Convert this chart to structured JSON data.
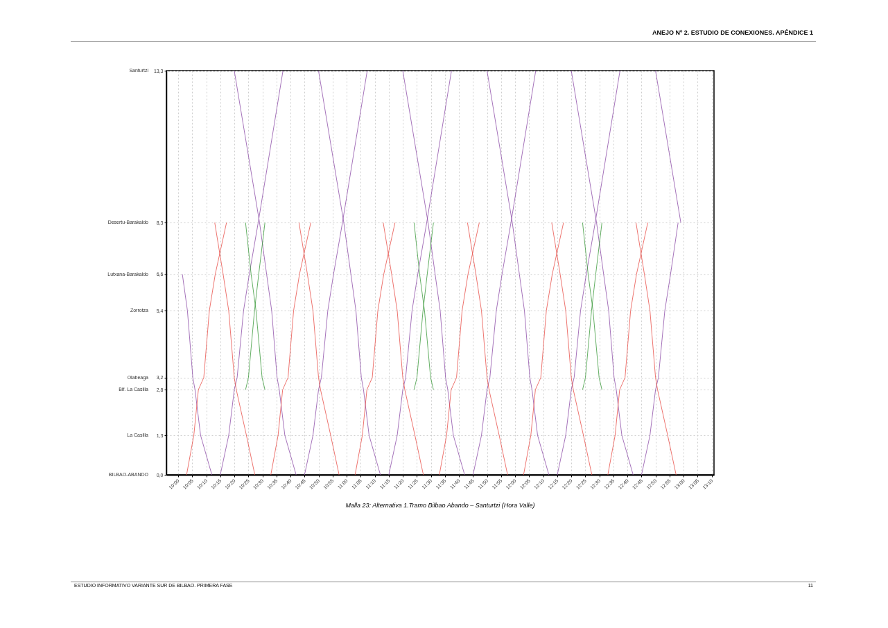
{
  "chart_data": {
    "type": "line",
    "title": "Malla 23: Alternativa 1.Tramo Bilbao Abando – Santurtzi (Hora Valle)",
    "xlim": [
      9.93,
      13.18
    ],
    "ylim": [
      0,
      13.3
    ],
    "xticks": [
      {
        "value": 10,
        "label": "10:00"
      },
      {
        "value": 10.0833,
        "label": "10:05"
      },
      {
        "value": 10.1667,
        "label": "10:10"
      },
      {
        "value": 10.25,
        "label": "10:15"
      },
      {
        "value": 10.3333,
        "label": "10:20"
      },
      {
        "value": 10.4167,
        "label": "10:25"
      },
      {
        "value": 10.5,
        "label": "10:30"
      },
      {
        "value": 10.5833,
        "label": "10:35"
      },
      {
        "value": 10.6667,
        "label": "10:40"
      },
      {
        "value": 10.75,
        "label": "10:45"
      },
      {
        "value": 10.8333,
        "label": "10:50"
      },
      {
        "value": 10.9167,
        "label": "10:55"
      },
      {
        "value": 11,
        "label": "11:00"
      },
      {
        "value": 11.0833,
        "label": "11:05"
      },
      {
        "value": 11.1667,
        "label": "11:10"
      },
      {
        "value": 11.25,
        "label": "11:15"
      },
      {
        "value": 11.3333,
        "label": "11:20"
      },
      {
        "value": 11.4167,
        "label": "11:25"
      },
      {
        "value": 11.5,
        "label": "11:30"
      },
      {
        "value": 11.5833,
        "label": "11:35"
      },
      {
        "value": 11.6667,
        "label": "11:40"
      },
      {
        "value": 11.75,
        "label": "11:45"
      },
      {
        "value": 11.8333,
        "label": "11:50"
      },
      {
        "value": 11.9167,
        "label": "11:55"
      },
      {
        "value": 12,
        "label": "12:00"
      },
      {
        "value": 12.0833,
        "label": "12:05"
      },
      {
        "value": 12.1667,
        "label": "12:10"
      },
      {
        "value": 12.25,
        "label": "12:15"
      },
      {
        "value": 12.3333,
        "label": "12:20"
      },
      {
        "value": 12.4167,
        "label": "12:25"
      },
      {
        "value": 12.5,
        "label": "12:30"
      },
      {
        "value": 12.5833,
        "label": "12:35"
      },
      {
        "value": 12.6667,
        "label": "12:40"
      },
      {
        "value": 12.75,
        "label": "12:45"
      },
      {
        "value": 12.8333,
        "label": "12:50"
      },
      {
        "value": 12.9167,
        "label": "12:55"
      },
      {
        "value": 13,
        "label": "13:00"
      },
      {
        "value": 13.0833,
        "label": "13:05"
      },
      {
        "value": 13.1667,
        "label": "13:10"
      }
    ],
    "yticks": [
      {
        "value": 0,
        "label": "0,0"
      },
      {
        "value": 1.3,
        "label": "1,3"
      },
      {
        "value": 2.8,
        "label": "2,8"
      },
      {
        "value": 3.2,
        "label": "3,2"
      },
      {
        "value": 5.4,
        "label": "5,4"
      },
      {
        "value": 6.6,
        "label": "6,6"
      },
      {
        "value": 8.3,
        "label": "8,3"
      },
      {
        "value": 13.3,
        "label": "13,3"
      }
    ],
    "annotations": [
      "ANEJO Nº 2. ESTUDIO DE CONEXIONES. APÉNDICE 1",
      "ESTUDIO INFORMATIVO VARIANTE SUR DE BILBAO. PRIMERA FASE",
      "11",
      "BILBAO-ABANDO",
      "La Casilla",
      "Bif. La Casilla",
      "Olabeaga",
      "Zorrotza",
      "Lutxana-Barakaldo",
      "Desertu-Barakaldo",
      "Santurtzi"
    ],
    "grid": true,
    "legend": false,
    "line_style": "solid",
    "marker": "none",
    "series": [
      {
        "color": "#8e4fa8",
        "x": [
          10.025,
          10.055,
          10.087,
          10.1,
          10.133,
          10.2
        ],
        "values": [
          6.6,
          5.4,
          3.2,
          2.8,
          1.3,
          0
        ]
      },
      {
        "color": "#8e4fa8",
        "x": [
          10.333,
          10.483,
          10.525,
          10.555,
          10.587,
          10.6,
          10.633,
          10.7
        ],
        "values": [
          13.3,
          8.3,
          6.6,
          5.4,
          3.2,
          2.8,
          1.3,
          0
        ]
      },
      {
        "color": "#8e4fa8",
        "x": [
          10.833,
          10.983,
          11.025,
          11.055,
          11.087,
          11.1,
          11.133,
          11.2
        ],
        "values": [
          13.3,
          8.3,
          6.6,
          5.4,
          3.2,
          2.8,
          1.3,
          0
        ]
      },
      {
        "color": "#8e4fa8",
        "x": [
          11.333,
          11.483,
          11.525,
          11.555,
          11.587,
          11.6,
          11.633,
          11.7
        ],
        "values": [
          13.3,
          8.3,
          6.6,
          5.4,
          3.2,
          2.8,
          1.3,
          0
        ]
      },
      {
        "color": "#8e4fa8",
        "x": [
          11.833,
          11.983,
          12.025,
          12.055,
          12.087,
          12.1,
          12.133,
          12.2
        ],
        "values": [
          13.3,
          8.3,
          6.6,
          5.4,
          3.2,
          2.8,
          1.3,
          0
        ]
      },
      {
        "color": "#8e4fa8",
        "x": [
          12.333,
          12.483,
          12.525,
          12.555,
          12.587,
          12.6,
          12.633,
          12.7
        ],
        "values": [
          13.3,
          8.3,
          6.6,
          5.4,
          3.2,
          2.8,
          1.3,
          0
        ]
      },
      {
        "color": "#8e4fa8",
        "x": [
          12.833,
          12.983
        ],
        "values": [
          13.3,
          8.3
        ]
      },
      {
        "color": "#8e4fa8",
        "x": [
          10.25,
          10.3,
          10.333,
          10.35,
          10.388,
          10.422,
          10.475,
          10.622
        ],
        "values": [
          0,
          1.3,
          2.8,
          3.2,
          5.4,
          6.6,
          8.3,
          13.3
        ]
      },
      {
        "color": "#8e4fa8",
        "x": [
          10.75,
          10.8,
          10.833,
          10.85,
          10.888,
          10.922,
          10.975,
          11.122
        ],
        "values": [
          0,
          1.3,
          2.8,
          3.2,
          5.4,
          6.6,
          8.3,
          13.3
        ]
      },
      {
        "color": "#8e4fa8",
        "x": [
          11.25,
          11.3,
          11.333,
          11.35,
          11.388,
          11.422,
          11.475,
          11.622
        ],
        "values": [
          0,
          1.3,
          2.8,
          3.2,
          5.4,
          6.6,
          8.3,
          13.3
        ]
      },
      {
        "color": "#8e4fa8",
        "x": [
          11.75,
          11.8,
          11.833,
          11.85,
          11.888,
          11.922,
          11.975,
          12.122
        ],
        "values": [
          0,
          1.3,
          2.8,
          3.2,
          5.4,
          6.6,
          8.3,
          13.3
        ]
      },
      {
        "color": "#8e4fa8",
        "x": [
          12.25,
          12.3,
          12.333,
          12.35,
          12.388,
          12.422,
          12.475,
          12.622
        ],
        "values": [
          0,
          1.3,
          2.8,
          3.2,
          5.4,
          6.6,
          8.3,
          13.3
        ]
      },
      {
        "color": "#8e4fa8",
        "x": [
          12.75,
          12.8,
          12.833,
          12.85,
          12.888,
          12.922,
          12.967
        ],
        "values": [
          0,
          1.3,
          2.8,
          3.2,
          5.4,
          6.6,
          8.3
        ]
      },
      {
        "color": "#e8504a",
        "x": [
          10.05,
          10.093,
          10.12,
          10.152,
          10.185,
          10.22,
          10.287
        ],
        "values": [
          0,
          1.3,
          2.8,
          3.2,
          5.4,
          6.6,
          8.3
        ]
      },
      {
        "color": "#e8504a",
        "x": [
          10.55,
          10.593,
          10.62,
          10.652,
          10.685,
          10.72,
          10.787
        ],
        "values": [
          0,
          1.3,
          2.8,
          3.2,
          5.4,
          6.6,
          8.3
        ]
      },
      {
        "color": "#e8504a",
        "x": [
          11.05,
          11.093,
          11.12,
          11.152,
          11.185,
          11.22,
          11.287
        ],
        "values": [
          0,
          1.3,
          2.8,
          3.2,
          5.4,
          6.6,
          8.3
        ]
      },
      {
        "color": "#e8504a",
        "x": [
          11.55,
          11.593,
          11.62,
          11.652,
          11.685,
          11.72,
          11.787
        ],
        "values": [
          0,
          1.3,
          2.8,
          3.2,
          5.4,
          6.6,
          8.3
        ]
      },
      {
        "color": "#e8504a",
        "x": [
          12.05,
          12.093,
          12.12,
          12.152,
          12.185,
          12.22,
          12.287
        ],
        "values": [
          0,
          1.3,
          2.8,
          3.2,
          5.4,
          6.6,
          8.3
        ]
      },
      {
        "color": "#e8504a",
        "x": [
          12.55,
          12.593,
          12.62,
          12.652,
          12.685,
          12.72,
          12.787
        ],
        "values": [
          0,
          1.3,
          2.8,
          3.2,
          5.4,
          6.6,
          8.3
        ]
      },
      {
        "color": "#e8504a",
        "x": [
          10.217,
          10.267,
          10.3,
          10.333,
          10.345,
          10.405,
          10.455
        ],
        "values": [
          8.3,
          6.6,
          5.4,
          3.2,
          2.8,
          1.3,
          0
        ]
      },
      {
        "color": "#e8504a",
        "x": [
          10.717,
          10.767,
          10.8,
          10.833,
          10.845,
          10.905,
          10.955
        ],
        "values": [
          8.3,
          6.6,
          5.4,
          3.2,
          2.8,
          1.3,
          0
        ]
      },
      {
        "color": "#e8504a",
        "x": [
          11.217,
          11.267,
          11.3,
          11.333,
          11.345,
          11.405,
          11.455
        ],
        "values": [
          8.3,
          6.6,
          5.4,
          3.2,
          2.8,
          1.3,
          0
        ]
      },
      {
        "color": "#e8504a",
        "x": [
          11.717,
          11.767,
          11.8,
          11.833,
          11.845,
          11.905,
          11.955
        ],
        "values": [
          8.3,
          6.6,
          5.4,
          3.2,
          2.8,
          1.3,
          0
        ]
      },
      {
        "color": "#e8504a",
        "x": [
          12.217,
          12.267,
          12.3,
          12.333,
          12.345,
          12.405,
          12.455
        ],
        "values": [
          8.3,
          6.6,
          5.4,
          3.2,
          2.8,
          1.3,
          0
        ]
      },
      {
        "color": "#e8504a",
        "x": [
          12.717,
          12.767,
          12.8,
          12.833,
          12.845,
          12.905,
          12.955
        ],
        "values": [
          8.3,
          6.6,
          5.4,
          3.2,
          2.8,
          1.3,
          0
        ]
      },
      {
        "color": "#3c9a3c",
        "x": [
          10.4,
          10.433,
          10.462,
          10.498,
          10.515
        ],
        "values": [
          8.3,
          6.6,
          5.4,
          3.2,
          2.8
        ]
      },
      {
        "color": "#3c9a3c",
        "x": [
          10.4,
          10.417,
          10.453,
          10.478,
          10.515
        ],
        "values": [
          2.8,
          3.2,
          5.4,
          6.6,
          8.3
        ]
      },
      {
        "color": "#3c9a3c",
        "x": [
          11.4,
          11.433,
          11.462,
          11.498,
          11.515
        ],
        "values": [
          8.3,
          6.6,
          5.4,
          3.2,
          2.8
        ]
      },
      {
        "color": "#3c9a3c",
        "x": [
          11.4,
          11.417,
          11.453,
          11.478,
          11.515
        ],
        "values": [
          2.8,
          3.2,
          5.4,
          6.6,
          8.3
        ]
      },
      {
        "color": "#3c9a3c",
        "x": [
          12.4,
          12.433,
          12.462,
          12.498,
          12.515
        ],
        "values": [
          8.3,
          6.6,
          5.4,
          3.2,
          2.8
        ]
      },
      {
        "color": "#3c9a3c",
        "x": [
          12.4,
          12.417,
          12.453,
          12.478,
          12.515
        ],
        "values": [
          2.8,
          3.2,
          5.4,
          6.6,
          8.3
        ]
      }
    ]
  }
}
